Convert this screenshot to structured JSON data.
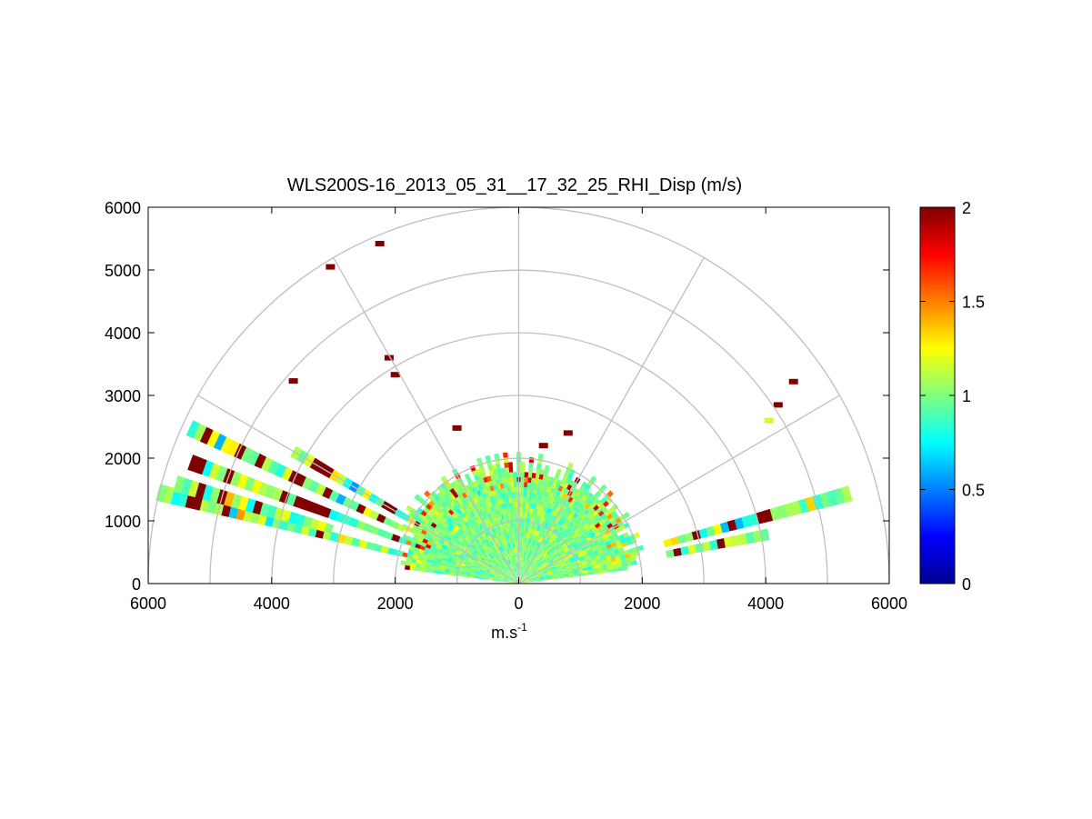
{
  "chart_data": {
    "type": "heatmap",
    "title": "WLS200S-16_2013_05_31__17_32_25_RHI_Disp (m/s)",
    "xlabel": "m.s",
    "xlabel_sup": "-1",
    "ylabel": "",
    "xlim": [
      -6000,
      6000
    ],
    "ylim": [
      0,
      6000
    ],
    "x_ticks": [
      -6000,
      -4000,
      -2000,
      0,
      2000,
      4000,
      6000
    ],
    "x_tick_labels": [
      "6000",
      "4000",
      "2000",
      "0",
      "2000",
      "4000",
      "6000"
    ],
    "y_ticks": [
      0,
      1000,
      2000,
      3000,
      4000,
      5000,
      6000
    ],
    "y_tick_labels": [
      "0",
      "1000",
      "2000",
      "3000",
      "4000",
      "5000",
      "6000"
    ],
    "polar_rings": [
      1000,
      2000,
      3000,
      4000,
      5000,
      6000
    ],
    "polar_spokes_deg": [
      0,
      30,
      60,
      90,
      120,
      150,
      180
    ],
    "colorbar": {
      "colormap": "jet",
      "range": [
        0,
        2
      ],
      "ticks": [
        0,
        0.5,
        1,
        1.5,
        2
      ],
      "tick_labels": [
        "0",
        "0.5",
        "1",
        "1.5",
        "2"
      ]
    },
    "scan": {
      "elevation_range_deg": [
        8,
        172
      ],
      "max_range_m": 6000,
      "dense_region_max_range_m": 2000,
      "typical_value_m_s": 1.0,
      "outer_rays": [
        {
          "elevation_deg": 166,
          "r_min": 2000,
          "r_max": 6000,
          "note": "left high-value band near ground"
        },
        {
          "elevation_deg": 164,
          "r_min": 3200,
          "r_max": 5800
        },
        {
          "elevation_deg": 160,
          "r_min": 2000,
          "r_max": 5700
        },
        {
          "elevation_deg": 155,
          "r_min": 2100,
          "r_max": 5900
        },
        {
          "elevation_deg": 150,
          "r_min": 2000,
          "r_max": 4200
        },
        {
          "elevation_deg": 15,
          "r_min": 2500,
          "r_max": 5600,
          "note": "right high-value band"
        },
        {
          "elevation_deg": 11,
          "r_min": 2500,
          "r_max": 4100
        }
      ],
      "isolated_high_value_points": [
        {
          "x": -2250,
          "y": 5420,
          "value": 2
        },
        {
          "x": -3050,
          "y": 5050,
          "value": 2
        },
        {
          "x": -3650,
          "y": 3230,
          "value": 2
        },
        {
          "x": -2100,
          "y": 3600,
          "value": 2
        },
        {
          "x": -2000,
          "y": 3330,
          "value": 2
        },
        {
          "x": -1000,
          "y": 2480,
          "value": 2
        },
        {
          "x": 4450,
          "y": 3220,
          "value": 2
        },
        {
          "x": 4200,
          "y": 2850,
          "value": 2
        },
        {
          "x": 4050,
          "y": 2600,
          "value": 1.15
        },
        {
          "x": 800,
          "y": 2400,
          "value": 2
        },
        {
          "x": 400,
          "y": 2200,
          "value": 2
        }
      ]
    }
  }
}
